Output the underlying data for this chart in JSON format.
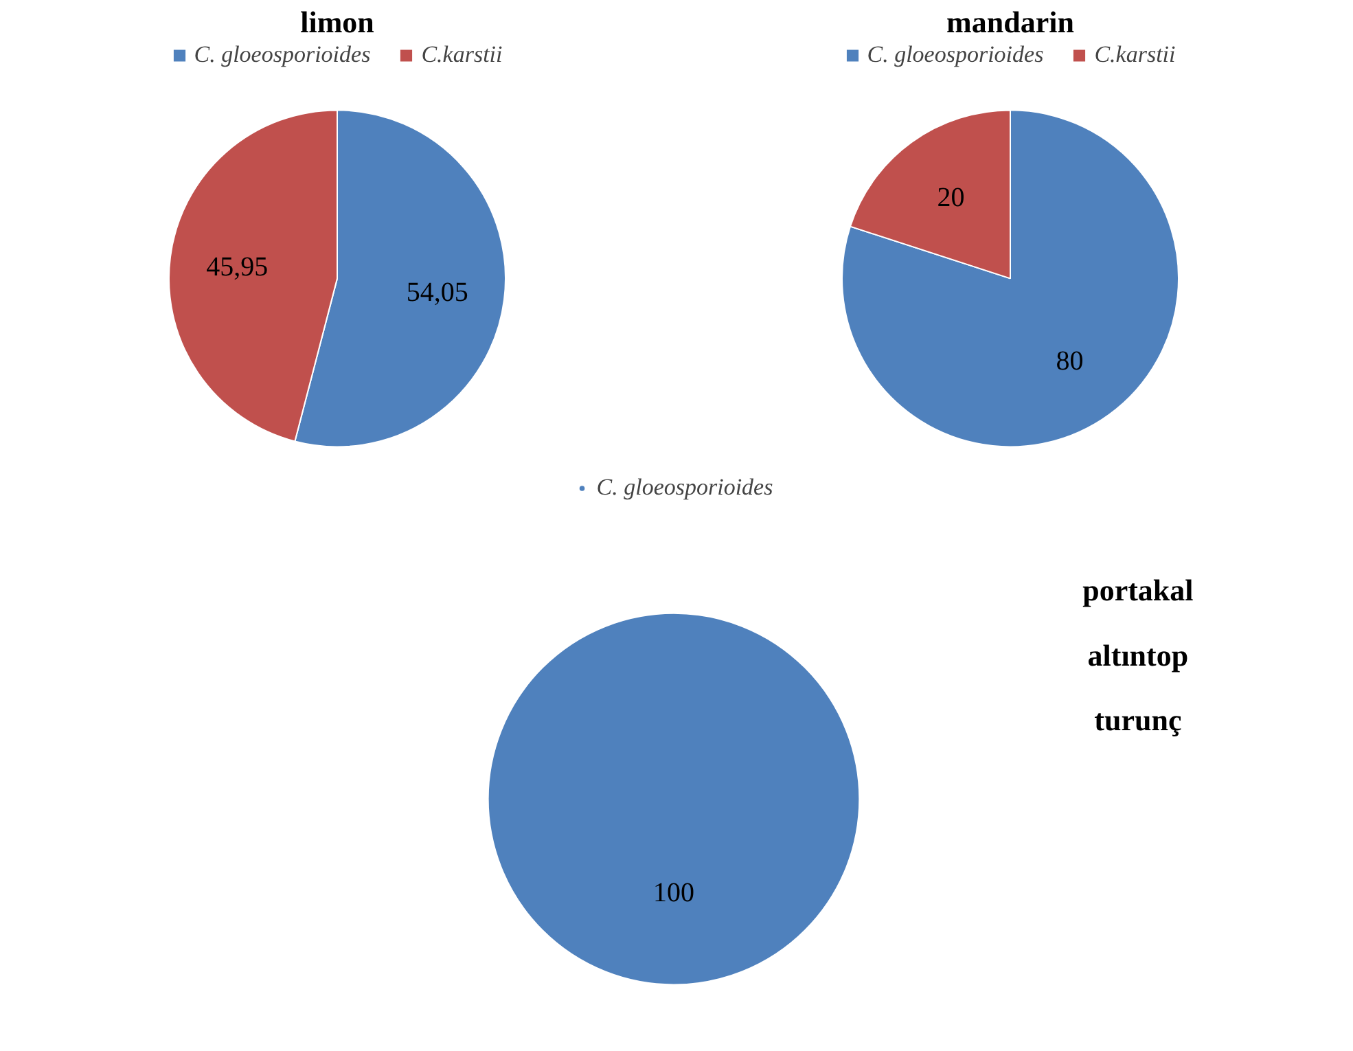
{
  "chart_data": [
    {
      "type": "pie",
      "title": "limon",
      "categories": [
        "C. gloeosporioides",
        "C.karstii"
      ],
      "values": [
        54.05,
        45.95
      ],
      "colors": [
        "#4f81bd",
        "#c0504d"
      ],
      "value_labels": [
        "54,05",
        "45,95"
      ],
      "legend": "top"
    },
    {
      "type": "pie",
      "title": "mandarin",
      "categories": [
        "C. gloeosporioides",
        "C.karstii"
      ],
      "values": [
        80,
        20
      ],
      "colors": [
        "#4f81bd",
        "#c0504d"
      ],
      "value_labels": [
        "80",
        "20"
      ],
      "legend": "top"
    },
    {
      "type": "pie",
      "title": "portakal\naltıntop\nturunç",
      "categories": [
        "C. gloeosporioides"
      ],
      "values": [
        100
      ],
      "colors": [
        "#4f81bd"
      ],
      "value_labels": [
        "100"
      ],
      "legend": "top"
    }
  ]
}
